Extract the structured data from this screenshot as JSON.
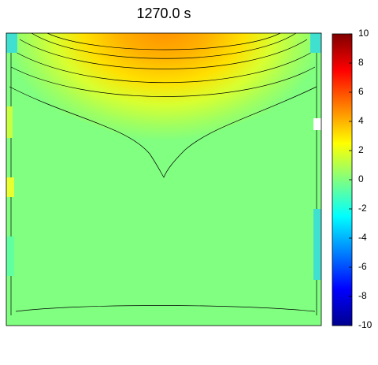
{
  "chart_data": {
    "type": "contour",
    "title": "1270.0 s",
    "clim": [
      -10,
      10
    ],
    "colorbar_ticks": [
      -10,
      -8,
      -6,
      -4,
      -2,
      0,
      2,
      4,
      6,
      8,
      10
    ],
    "colormap": [
      "#00008f",
      "#0000ff",
      "#0080ff",
      "#00ffff",
      "#80ff80",
      "#ffff00",
      "#ff8000",
      "#ff0000",
      "#800000"
    ]
  }
}
